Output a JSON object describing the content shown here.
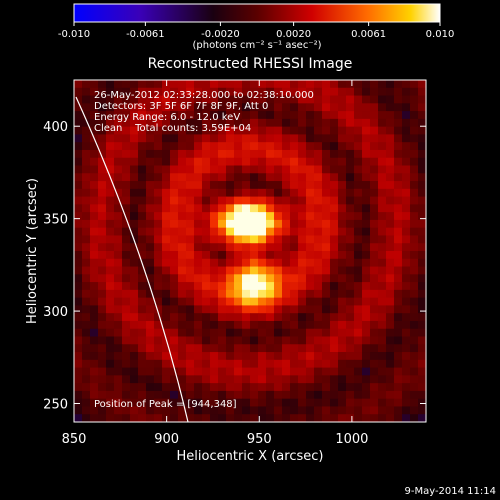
{
  "chart_data": {
    "type": "heatmap",
    "title": "Reconstructed RHESSI Image",
    "xlabel": "Heliocentric X (arcsec)",
    "ylabel": "Heliocentric Y (arcsec)",
    "xlim": [
      850,
      1040
    ],
    "ylim": [
      240,
      425
    ],
    "x_ticks": [
      "850",
      "900",
      "950",
      "1000"
    ],
    "x_tick_values": [
      850,
      900,
      950,
      1000
    ],
    "y_ticks": [
      "250",
      "300",
      "350",
      "400"
    ],
    "y_tick_values": [
      250,
      300,
      350,
      400
    ],
    "colorbar": {
      "range": [
        -0.01,
        0.01
      ],
      "ticks": [
        "-0.010",
        "-0.0061",
        "-0.0020",
        "0.0020",
        "0.0061",
        "0.010"
      ],
      "tick_values": [
        -0.01,
        -0.0061,
        -0.002,
        0.002,
        0.0061,
        0.01
      ],
      "units": "(photons cm⁻² s⁻¹ asec⁻²)",
      "colormap": "blue-black-red-yellow-white"
    },
    "annotations": {
      "time_range": "26-May-2012 02:33:28.000 to 02:38:10.000",
      "detectors": "Detectors: 3F 5F 6F 7F 8F 9F, Att 0",
      "energy": "Energy Range: 6.0 - 12.0 keV",
      "method": "Clean    Total counts: 3.59E+04",
      "peak": "Position of Peak = [944,348]"
    },
    "peak": [
      944,
      348
    ],
    "sources": [
      {
        "x": 944,
        "y": 348,
        "intensity": 1.0
      },
      {
        "x": 947,
        "y": 316,
        "intensity": 0.85
      }
    ],
    "limb": "solar limb arc"
  },
  "footer": {
    "date": "9-May-2014 11:14"
  },
  "colors": {
    "background": "#000000",
    "text": "#ffffff"
  }
}
